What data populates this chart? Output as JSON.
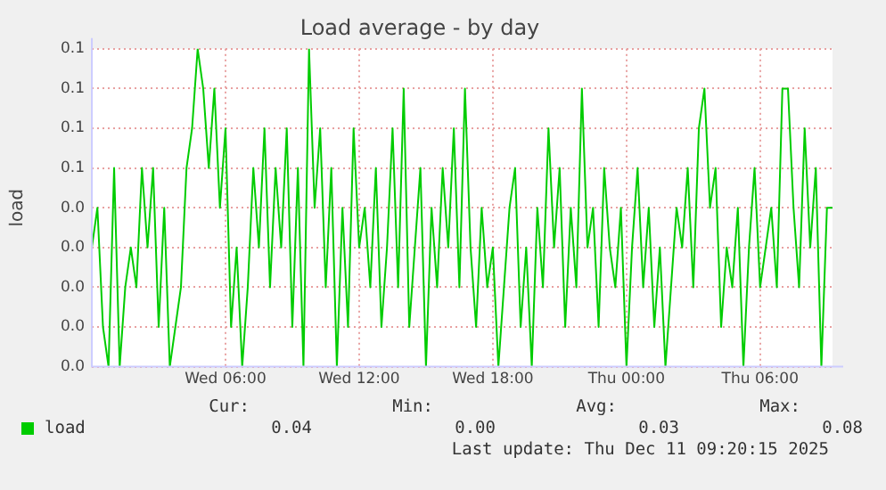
{
  "chart_data": {
    "type": "line",
    "title": "Load average - by day",
    "ylabel": "load",
    "x": [
      "2025-12-10T00:00",
      "2025-12-10T00:15",
      "2025-12-10T00:30",
      "2025-12-10T00:45",
      "2025-12-10T01:00",
      "2025-12-10T01:15",
      "2025-12-10T01:30",
      "2025-12-10T01:45",
      "2025-12-10T02:00",
      "2025-12-10T02:15",
      "2025-12-10T02:30",
      "2025-12-10T02:45",
      "2025-12-10T03:00",
      "2025-12-10T03:15",
      "2025-12-10T03:30",
      "2025-12-10T03:45",
      "2025-12-10T04:00",
      "2025-12-10T04:15",
      "2025-12-10T04:30",
      "2025-12-10T04:45",
      "2025-12-10T05:00",
      "2025-12-10T05:15",
      "2025-12-10T05:30",
      "2025-12-10T05:45",
      "2025-12-10T06:00",
      "2025-12-10T06:15",
      "2025-12-10T06:30",
      "2025-12-10T06:45",
      "2025-12-10T07:00",
      "2025-12-10T07:15",
      "2025-12-10T07:30",
      "2025-12-10T07:45",
      "2025-12-10T08:00",
      "2025-12-10T08:15",
      "2025-12-10T08:30",
      "2025-12-10T08:45",
      "2025-12-10T09:00",
      "2025-12-10T09:15",
      "2025-12-10T09:30",
      "2025-12-10T09:45",
      "2025-12-10T10:00",
      "2025-12-10T10:15",
      "2025-12-10T10:30",
      "2025-12-10T10:45",
      "2025-12-10T11:00",
      "2025-12-10T11:15",
      "2025-12-10T11:30",
      "2025-12-10T11:45",
      "2025-12-10T12:00",
      "2025-12-10T12:15",
      "2025-12-10T12:30",
      "2025-12-10T12:45",
      "2025-12-10T13:00",
      "2025-12-10T13:15",
      "2025-12-10T13:30",
      "2025-12-10T13:45",
      "2025-12-10T14:00",
      "2025-12-10T14:15",
      "2025-12-10T14:30",
      "2025-12-10T14:45",
      "2025-12-10T15:00",
      "2025-12-10T15:15",
      "2025-12-10T15:30",
      "2025-12-10T15:45",
      "2025-12-10T16:00",
      "2025-12-10T16:15",
      "2025-12-10T16:30",
      "2025-12-10T16:45",
      "2025-12-10T17:00",
      "2025-12-10T17:15",
      "2025-12-10T17:30",
      "2025-12-10T17:45",
      "2025-12-10T18:00",
      "2025-12-10T18:15",
      "2025-12-10T18:30",
      "2025-12-10T18:45",
      "2025-12-10T19:00",
      "2025-12-10T19:15",
      "2025-12-10T19:30",
      "2025-12-10T19:45",
      "2025-12-10T20:00",
      "2025-12-10T20:15",
      "2025-12-10T20:30",
      "2025-12-10T20:45",
      "2025-12-10T21:00",
      "2025-12-10T21:15",
      "2025-12-10T21:30",
      "2025-12-10T21:45",
      "2025-12-10T22:00",
      "2025-12-10T22:15",
      "2025-12-10T22:30",
      "2025-12-10T22:45",
      "2025-12-10T23:00",
      "2025-12-10T23:15",
      "2025-12-10T23:30",
      "2025-12-10T23:45",
      "2025-12-11T00:00",
      "2025-12-11T00:15",
      "2025-12-11T00:30",
      "2025-12-11T00:45",
      "2025-12-11T01:00",
      "2025-12-11T01:15",
      "2025-12-11T01:30",
      "2025-12-11T01:45",
      "2025-12-11T02:00",
      "2025-12-11T02:15",
      "2025-12-11T02:30",
      "2025-12-11T02:45",
      "2025-12-11T03:00",
      "2025-12-11T03:15",
      "2025-12-11T03:30",
      "2025-12-11T03:45",
      "2025-12-11T04:00",
      "2025-12-11T04:15",
      "2025-12-11T04:30",
      "2025-12-11T04:45",
      "2025-12-11T05:00",
      "2025-12-11T05:15",
      "2025-12-11T05:30",
      "2025-12-11T05:45",
      "2025-12-11T06:00",
      "2025-12-11T06:15",
      "2025-12-11T06:30",
      "2025-12-11T06:45",
      "2025-12-11T07:00",
      "2025-12-11T07:15",
      "2025-12-11T07:30",
      "2025-12-11T07:45",
      "2025-12-11T08:00",
      "2025-12-11T08:15",
      "2025-12-11T08:30",
      "2025-12-11T08:45",
      "2025-12-11T09:00",
      "2025-12-11T09:15"
    ],
    "series": [
      {
        "name": "load",
        "color": "#00cc00",
        "values": [
          0.03,
          0.04,
          0.01,
          0,
          0.05,
          0,
          0.02,
          0.03,
          0.02,
          0.05,
          0.03,
          0.05,
          0.01,
          0.04,
          0,
          0.01,
          0.02,
          0.05,
          0.06,
          0.08,
          0.07,
          0.05,
          0.07,
          0.04,
          0.06,
          0.01,
          0.03,
          0,
          0.02,
          0.05,
          0.03,
          0.06,
          0.02,
          0.05,
          0.03,
          0.06,
          0.01,
          0.05,
          0,
          0.08,
          0.04,
          0.06,
          0.02,
          0.05,
          0,
          0.04,
          0.01,
          0.06,
          0.03,
          0.04,
          0.02,
          0.05,
          0.01,
          0.03,
          0.06,
          0.02,
          0.07,
          0.01,
          0.03,
          0.05,
          0,
          0.04,
          0.02,
          0.05,
          0.03,
          0.06,
          0.02,
          0.07,
          0.03,
          0.01,
          0.04,
          0.02,
          0.03,
          0,
          0.02,
          0.04,
          0.05,
          0.01,
          0.03,
          0,
          0.04,
          0.02,
          0.06,
          0.03,
          0.05,
          0.01,
          0.04,
          0.02,
          0.07,
          0.03,
          0.04,
          0.01,
          0.05,
          0.03,
          0.02,
          0.04,
          0,
          0.03,
          0.05,
          0.02,
          0.04,
          0.01,
          0.03,
          0,
          0.02,
          0.04,
          0.03,
          0.05,
          0.02,
          0.06,
          0.07,
          0.04,
          0.05,
          0.01,
          0.03,
          0.02,
          0.04,
          0,
          0.03,
          0.05,
          0.02,
          0.03,
          0.04,
          0.02,
          0.07,
          0.07,
          0.04,
          0.02,
          0.06,
          0.03,
          0.05,
          0,
          0.04,
          0.04
        ]
      }
    ],
    "xlim": [
      "2025-12-10T00:00",
      "2025-12-11T09:15"
    ],
    "xticks": [
      {
        "value": "2025-12-10T06:00",
        "label": "Wed 06:00"
      },
      {
        "value": "2025-12-10T12:00",
        "label": "Wed 12:00"
      },
      {
        "value": "2025-12-10T18:00",
        "label": "Wed 18:00"
      },
      {
        "value": "2025-12-11T00:00",
        "label": "Thu 00:00"
      },
      {
        "value": "2025-12-11T06:00",
        "label": "Thu 06:00"
      }
    ],
    "ylim": [
      0,
      0.08
    ],
    "yticks": [
      {
        "value": 0,
        "label": "0.0"
      },
      {
        "value": 0.01,
        "label": "0.0"
      },
      {
        "value": 0.02,
        "label": "0.0"
      },
      {
        "value": 0.03,
        "label": "0.0"
      },
      {
        "value": 0.04,
        "label": "0.0"
      },
      {
        "value": 0.05,
        "label": "0.1"
      },
      {
        "value": 0.06,
        "label": "0.1"
      },
      {
        "value": 0.07,
        "label": "0.1"
      },
      {
        "value": 0.08,
        "label": "0.1"
      }
    ],
    "grid": true,
    "legend": "bottom",
    "marker": "none",
    "line_style": "solid",
    "annotations": [
      "Cur:",
      "Min:",
      "Avg:",
      "Max:",
      "0.04",
      "0.00",
      "0.03",
      "0.08",
      "Last update: Thu Dec 11 09:20:15 2025"
    ]
  }
}
